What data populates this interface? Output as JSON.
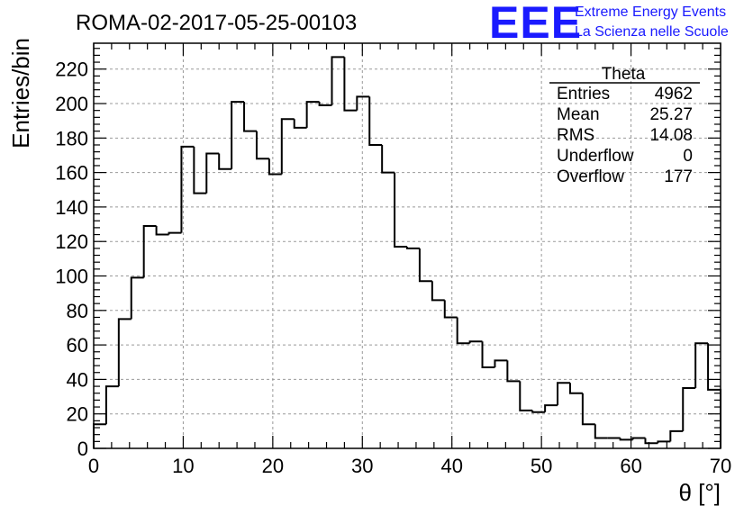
{
  "colors": {
    "line": "#000000",
    "grid": "#999999",
    "brand": "#1a1aff"
  },
  "brand": {
    "logo": "EEE",
    "line1": "Extreme Energy Events",
    "line2": "La Scienza nelle Scuole"
  },
  "stats": {
    "title": "Theta",
    "rows": [
      {
        "label": "Entries",
        "value": "4962"
      },
      {
        "label": "Mean",
        "value": "25.27"
      },
      {
        "label": "RMS",
        "value": "14.08"
      },
      {
        "label": "Underflow",
        "value": "0"
      },
      {
        "label": "Overflow",
        "value": "177"
      }
    ]
  },
  "chart_data": {
    "type": "bar",
    "title": "ROMA-02-2017-05-25-00103",
    "xlabel": "θ [°]",
    "ylabel": "Entries/bin",
    "xlim": [
      0,
      70
    ],
    "ylim": [
      0,
      235
    ],
    "xticks": [
      0,
      10,
      20,
      30,
      40,
      50,
      60,
      70
    ],
    "yticks": [
      0,
      20,
      40,
      60,
      80,
      100,
      120,
      140,
      160,
      180,
      200,
      220
    ],
    "grid": true,
    "bin_width": 1.4,
    "x": [
      0,
      1.4,
      2.8,
      4.2,
      5.6,
      7,
      8.4,
      9.8,
      11.2,
      12.6,
      14,
      15.4,
      16.8,
      18.2,
      19.6,
      21,
      22.4,
      23.8,
      25.2,
      26.6,
      28,
      29.4,
      30.8,
      32.2,
      33.6,
      35,
      36.4,
      37.8,
      39.2,
      40.6,
      42,
      43.4,
      44.8,
      46.2,
      47.6,
      49,
      50.4,
      51.8,
      53.2,
      54.6,
      56,
      57.4,
      58.8,
      60.2,
      61.6,
      63,
      64.4,
      65.8,
      67.2,
      68.6
    ],
    "values": [
      14,
      36,
      75,
      99,
      129,
      124,
      125,
      175,
      148,
      171,
      162,
      201,
      184,
      168,
      159,
      191,
      186,
      201,
      199,
      227,
      196,
      204,
      176,
      160,
      117,
      116,
      97,
      86,
      76,
      61,
      62,
      47,
      51,
      39,
      22,
      21,
      25,
      38,
      32,
      14,
      6,
      6,
      5,
      6,
      3,
      4,
      10,
      35,
      61,
      34
    ]
  }
}
